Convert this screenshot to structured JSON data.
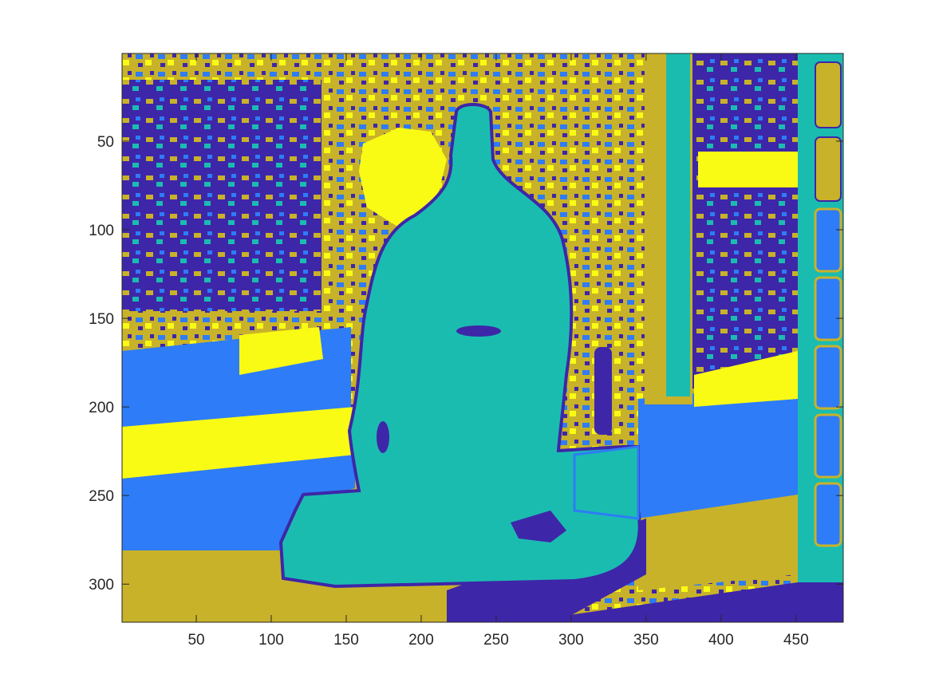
{
  "chart_data": {
    "type": "heatmap",
    "title": "",
    "xlabel": "",
    "ylabel": "",
    "xlim": [
      0.5,
      481.5
    ],
    "ylim": [
      321.5,
      0.5
    ],
    "y_direction": "reversed",
    "grid": false,
    "legend": "none",
    "colorbar": false,
    "x_ticks": [
      50,
      100,
      150,
      200,
      250,
      300,
      350,
      400,
      450
    ],
    "x_tick_labels": [
      "50",
      "100",
      "150",
      "200",
      "250",
      "300",
      "350",
      "400",
      "450"
    ],
    "y_ticks": [
      50,
      100,
      150,
      200,
      250,
      300
    ],
    "y_tick_labels": [
      "50",
      "100",
      "150",
      "200",
      "250",
      "300"
    ],
    "clusters": 5,
    "cluster_colors": [
      "#3e26a8",
      "#2e7cf7",
      "#1bbcb0",
      "#c8b22a",
      "#f9fb15"
    ],
    "description_regions": [
      {
        "cluster": 3,
        "label": "subject"
      }
    ]
  }
}
